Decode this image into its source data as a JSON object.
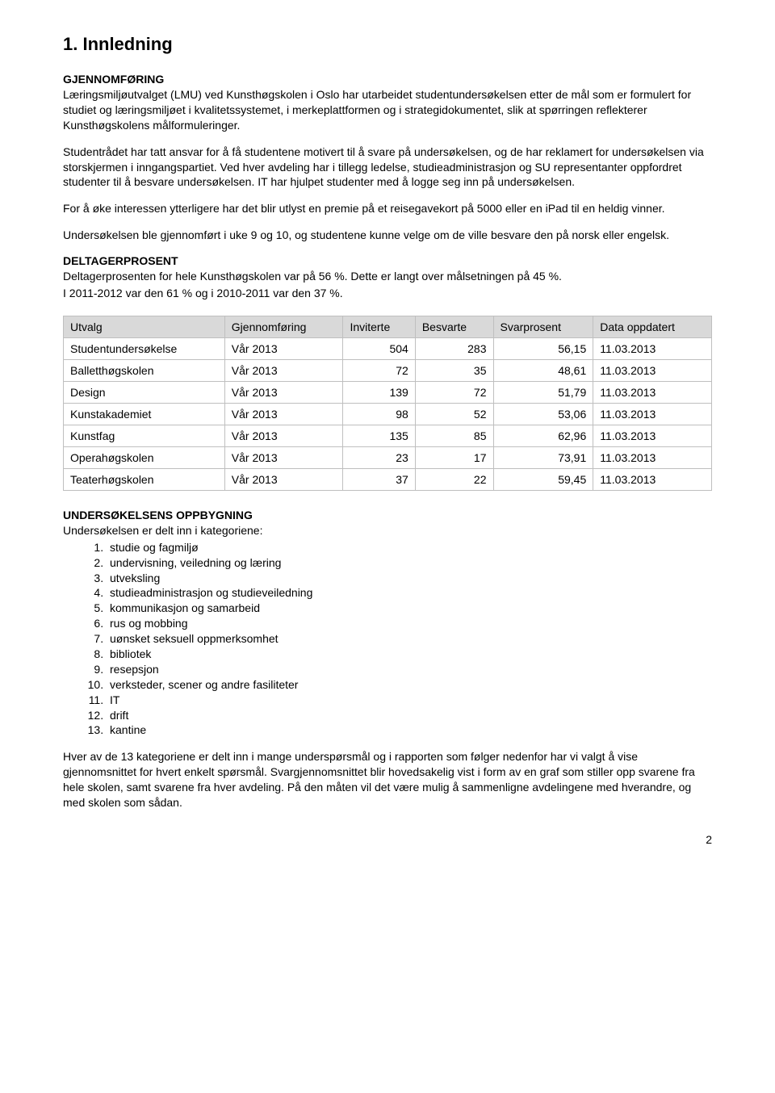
{
  "heading": "1. Innledning",
  "sec1": {
    "label": "GJENNOMFØRING",
    "p1": "Læringsmiljøutvalget (LMU) ved Kunsthøgskolen i Oslo har utarbeidet studentundersøkelsen etter de mål som er formulert for studiet og læringsmiljøet i kvalitetssystemet, i merkeplattformen og i strategidokumentet, slik at spørringen reflekterer Kunsthøgskolens målformuleringer.",
    "p2": "Studentrådet har tatt ansvar for å få studentene motivert til å svare på undersøkelsen, og de har reklamert for undersøkelsen via storskjermen i inngangspartiet. Ved hver avdeling har i tillegg ledelse, studieadministrasjon og SU representanter oppfordret studenter til å besvare undersøkelsen. IT har hjulpet studenter med å logge seg inn på undersøkelsen.",
    "p3": "For å øke interessen ytterligere har det blir utlyst en premie på et reisegavekort på 5000 eller en iPad til en heldig vinner.",
    "p4": "Undersøkelsen ble gjennomført i uke 9 og 10, og studentene kunne velge om de ville besvare den på norsk eller engelsk."
  },
  "sec2": {
    "label": "DELTAGERPROSENT",
    "p1": "Deltagerprosenten for hele Kunsthøgskolen var på 56 %. Dette er langt over målsetningen på 45 %.",
    "p2": "I 2011-2012 var den 61 % og i 2010-2011 var den 37 %."
  },
  "table": {
    "headers": [
      "Utvalg",
      "Gjennomføring",
      "Inviterte",
      "Besvarte",
      "Svarprosent",
      "Data oppdatert"
    ],
    "rows": [
      [
        "Studentundersøkelse",
        "Vår 2013",
        "504",
        "283",
        "56,15",
        "11.03.2013"
      ],
      [
        "Balletthøgskolen",
        "Vår 2013",
        "72",
        "35",
        "48,61",
        "11.03.2013"
      ],
      [
        "Design",
        "Vår 2013",
        "139",
        "72",
        "51,79",
        "11.03.2013"
      ],
      [
        "Kunstakademiet",
        "Vår 2013",
        "98",
        "52",
        "53,06",
        "11.03.2013"
      ],
      [
        "Kunstfag",
        "Vår 2013",
        "135",
        "85",
        "62,96",
        "11.03.2013"
      ],
      [
        "Operahøgskolen",
        "Vår 2013",
        "23",
        "17",
        "73,91",
        "11.03.2013"
      ],
      [
        "Teaterhøgskolen",
        "Vår 2013",
        "37",
        "22",
        "59,45",
        "11.03.2013"
      ]
    ],
    "header_bg": "#d9d9d9",
    "border_color": "#bfbfbf"
  },
  "sec3": {
    "label": "UNDERSØKELSENS OPPBYGNING",
    "intro": "Undersøkelsen er delt inn i kategoriene:",
    "items": [
      "studie og fagmiljø",
      "undervisning, veiledning og læring",
      "utveksling",
      "studieadministrasjon og studieveiledning",
      "kommunikasjon og samarbeid",
      "rus og mobbing",
      "uønsket seksuell oppmerksomhet",
      "bibliotek",
      "resepsjon",
      "verksteder, scener og andre fasiliteter",
      "IT",
      "drift",
      "kantine"
    ],
    "outro": "Hver av de 13 kategoriene er delt inn i mange underspørsmål og i rapporten som følger nedenfor har vi valgt å vise gjennomsnittet for hvert enkelt spørsmål. Svargjennomsnittet blir hovedsakelig vist i form av en graf som stiller opp svarene fra hele skolen, samt svarene fra hver avdeling. På den måten vil det være mulig å sammenligne avdelingene med hverandre, og med skolen som sådan."
  },
  "pageNumber": "2"
}
